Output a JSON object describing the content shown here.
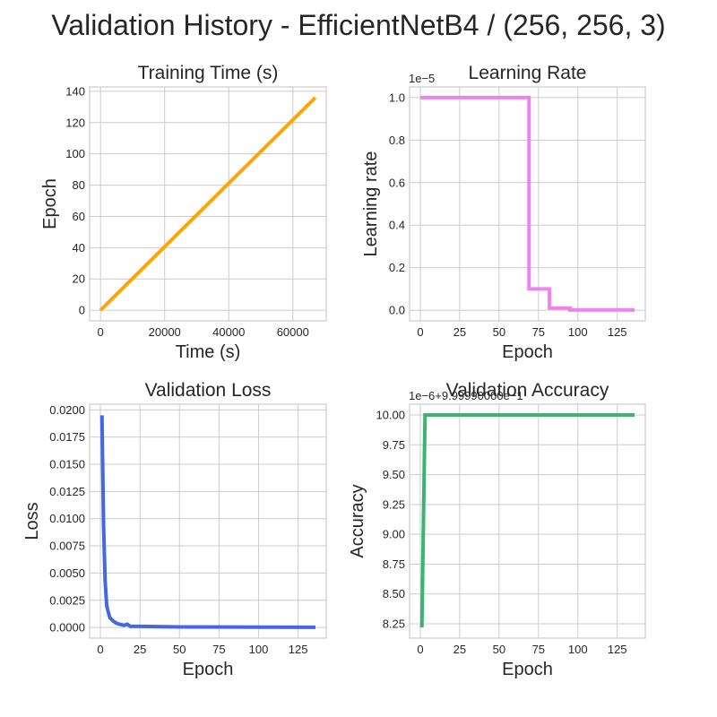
{
  "figure_title": "Validation History - EfficientNetB4 / (256, 256, 3)",
  "chart_data": [
    {
      "id": "training-time",
      "type": "line",
      "title": "Training Time (s)",
      "xlabel": "Time (s)",
      "ylabel": "Epoch",
      "xlim": [
        -3400,
        70400
      ],
      "ylim": [
        -6.8,
        142.8
      ],
      "xticks": [
        0,
        20000,
        40000,
        60000
      ],
      "xtick_labels": [
        "0",
        "20000",
        "40000",
        "60000"
      ],
      "yticks": [
        0,
        20,
        40,
        60,
        80,
        100,
        120,
        140
      ],
      "ytick_labels": [
        "0",
        "20",
        "40",
        "60",
        "80",
        "100",
        "120",
        "140"
      ],
      "offset_text": "",
      "grid": true,
      "color": "#FFA500",
      "x": [
        0,
        67000
      ],
      "y": [
        0,
        136
      ]
    },
    {
      "id": "learning-rate",
      "type": "line",
      "title": "Learning Rate",
      "xlabel": "Epoch",
      "ylabel": "Learning rate",
      "xlim": [
        -6.8,
        142.8
      ],
      "ylim": [
        -0.05,
        1.05
      ],
      "xticks": [
        0,
        25,
        50,
        75,
        100,
        125
      ],
      "xtick_labels": [
        "0",
        "25",
        "50",
        "75",
        "100",
        "125"
      ],
      "yticks": [
        0.0,
        0.2,
        0.4,
        0.6,
        0.8,
        1.0
      ],
      "ytick_labels": [
        "0.0",
        "0.2",
        "0.4",
        "0.6",
        "0.8",
        "1.0"
      ],
      "offset_text": "1e−5",
      "grid": true,
      "color": "#EE82EE",
      "x": [
        0,
        69,
        69,
        82,
        82,
        95,
        95,
        136
      ],
      "y": [
        1.0,
        1.0,
        0.1,
        0.1,
        0.01,
        0.01,
        0.001,
        0.001
      ]
    },
    {
      "id": "validation-loss",
      "type": "line",
      "title": "Validation Loss",
      "xlabel": "Epoch",
      "ylabel": "Loss",
      "xlim": [
        -6.8,
        142.8
      ],
      "ylim": [
        -0.00098,
        0.02052
      ],
      "xticks": [
        0,
        25,
        50,
        75,
        100,
        125
      ],
      "xtick_labels": [
        "0",
        "25",
        "50",
        "75",
        "100",
        "125"
      ],
      "yticks": [
        0.0,
        0.0025,
        0.005,
        0.0075,
        0.01,
        0.0125,
        0.015,
        0.0175,
        0.02
      ],
      "ytick_labels": [
        "0.0000",
        "0.0025",
        "0.0050",
        "0.0075",
        "0.0100",
        "0.0125",
        "0.0150",
        "0.0175",
        "0.0200"
      ],
      "offset_text": "",
      "grid": true,
      "color": "#4169E1",
      "x": [
        1,
        2,
        3,
        4,
        5,
        6,
        8,
        10,
        12,
        15,
        17,
        19,
        25,
        50,
        100,
        136
      ],
      "y": [
        0.0195,
        0.0095,
        0.0043,
        0.002,
        0.0014,
        0.0009,
        0.0006,
        0.0004,
        0.0003,
        0.0002,
        0.0003,
        0.0001,
        0.0001,
        5e-05,
        3e-05,
        2e-05
      ]
    },
    {
      "id": "validation-accuracy",
      "type": "line",
      "title": "Validation Accuracy",
      "xlabel": "Epoch",
      "ylabel": "Accuracy",
      "xlim": [
        -6.8,
        142.8
      ],
      "ylim": [
        8.13,
        10.09
      ],
      "xticks": [
        0,
        25,
        50,
        75,
        100,
        125
      ],
      "xtick_labels": [
        "0",
        "25",
        "50",
        "75",
        "100",
        "125"
      ],
      "yticks": [
        8.25,
        8.5,
        8.75,
        9.0,
        9.25,
        9.5,
        9.75,
        10.0
      ],
      "ytick_labels": [
        "8.25",
        "8.50",
        "8.75",
        "9.00",
        "9.25",
        "9.50",
        "9.75",
        "10.00"
      ],
      "offset_text": "1e−6+9.99990000e−1",
      "grid": true,
      "color": "#3CB371",
      "x": [
        1,
        3,
        136
      ],
      "y": [
        8.22,
        10.0,
        10.0
      ]
    }
  ]
}
